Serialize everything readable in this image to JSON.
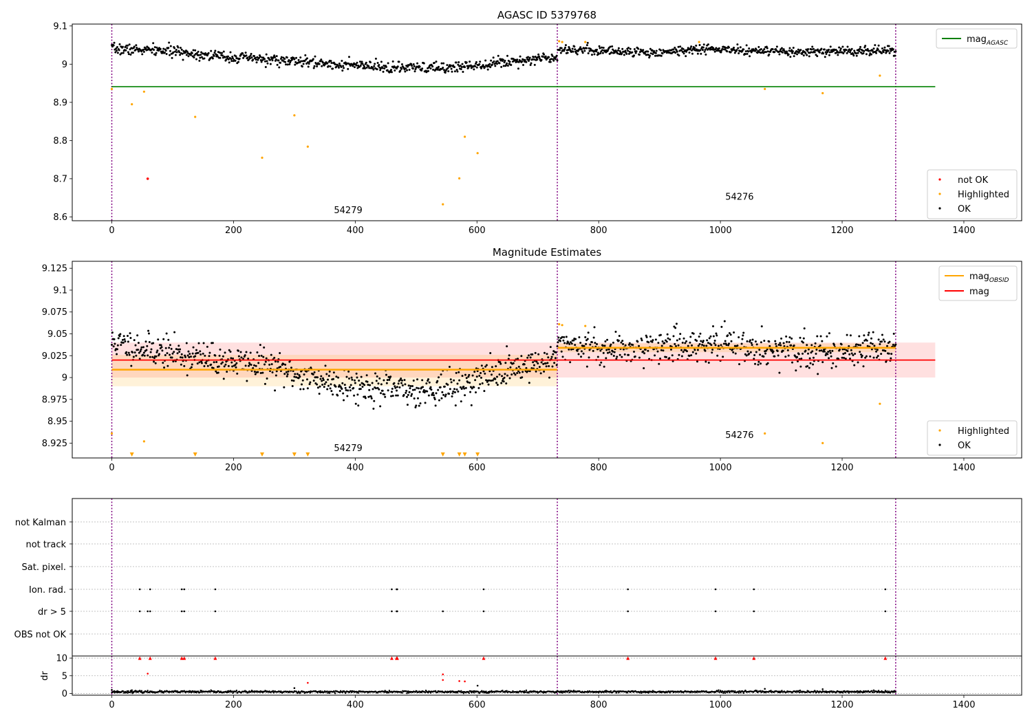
{
  "chart_data": [
    {
      "type": "scatter",
      "title": "AGASC ID 5379768",
      "xlim": [
        -65,
        1495
      ],
      "ylim": [
        8.59,
        9.105
      ],
      "x_ticks": [
        0,
        200,
        400,
        600,
        800,
        1000,
        1200,
        1400
      ],
      "y_ticks": [
        8.6,
        8.7,
        8.8,
        8.9,
        9.0,
        9.1
      ],
      "obsid_boundaries": [
        0,
        732,
        1288
      ],
      "obsid_labels": [
        {
          "text": "54279",
          "x": 365,
          "y": 8.61
        },
        {
          "text": "54276",
          "x": 1008,
          "y": 8.645
        }
      ],
      "hline": {
        "name": "mag",
        "subscript": "AGASC",
        "y": 8.941,
        "x0": 0,
        "x1": 1353,
        "color": "#008000"
      },
      "ok_trend": {
        "seed": 7,
        "segments": [
          {
            "x0": 0,
            "x1": 732,
            "y": [
              9.04,
              9.035,
              9.02,
              9.01,
              9.0,
              8.99,
              8.99,
              9.005,
              9.02
            ],
            "noise": 0.007
          },
          {
            "x0": 733,
            "x1": 1288,
            "y": [
              9.04,
              9.035,
              9.03,
              9.04,
              9.035,
              9.03,
              9.035,
              9.035
            ],
            "noise": 0.006
          }
        ],
        "step": 1
      },
      "highlighted": [
        [
          0,
          8.935
        ],
        [
          33,
          8.895
        ],
        [
          53,
          8.928
        ],
        [
          137,
          8.862
        ],
        [
          247,
          8.755
        ],
        [
          300,
          8.866
        ],
        [
          322,
          8.784
        ],
        [
          544,
          8.633
        ],
        [
          571,
          8.701
        ],
        [
          580,
          8.81
        ],
        [
          601,
          8.767
        ],
        [
          735,
          9.06
        ],
        [
          740,
          9.058
        ],
        [
          778,
          9.058
        ],
        [
          965,
          9.058
        ],
        [
          1073,
          8.935
        ],
        [
          1168,
          8.924
        ],
        [
          1262,
          8.97
        ]
      ],
      "not_ok": [
        [
          59,
          8.7
        ]
      ],
      "legends": {
        "lines": [
          {
            "name": "mag",
            "subscript": "AGASC",
            "color": "#008000"
          }
        ],
        "points": [
          {
            "name": "not OK",
            "color": "#ff0000"
          },
          {
            "name": "Highlighted",
            "color": "#ffa500"
          },
          {
            "name": "OK",
            "color": "#000000"
          }
        ]
      }
    },
    {
      "type": "scatter",
      "title": "Magnitude Estimates",
      "xlim": [
        -65,
        1495
      ],
      "ylim": [
        8.908,
        9.133
      ],
      "x_ticks": [
        0,
        200,
        400,
        600,
        800,
        1000,
        1200,
        1400
      ],
      "y_ticks": [
        8.925,
        8.95,
        8.975,
        9.0,
        9.025,
        9.05,
        9.075,
        9.1,
        9.125
      ],
      "obsid_boundaries": [
        0,
        732,
        1288
      ],
      "obsid_labels": [
        {
          "text": "54279",
          "x": 365,
          "y": 8.916
        },
        {
          "text": "54276",
          "x": 1008,
          "y": 8.931
        }
      ],
      "mag": {
        "name": "mag",
        "y": 9.02,
        "band": [
          9.0,
          9.04
        ],
        "x0": 0,
        "x1": 1353,
        "color": "#ff0000"
      },
      "mag_obsid": [
        {
          "x0": 0,
          "x1": 732,
          "y": 9.009,
          "band": [
            8.99,
            9.026
          ]
        },
        {
          "x0": 733,
          "x1": 1288,
          "y": 9.034,
          "band": [
            9.029,
            9.039
          ]
        }
      ],
      "ok_trend": {
        "seed": 11,
        "segments": [
          {
            "x0": 0,
            "x1": 732,
            "y": [
              9.04,
              9.03,
              9.02,
              9.015,
              9.0,
              8.99,
              8.985,
              8.99,
              9.01,
              9.02
            ],
            "noise": 0.009
          },
          {
            "x0": 733,
            "x1": 1288,
            "y": [
              9.04,
              9.032,
              9.035,
              9.038,
              9.035,
              9.028,
              9.032,
              9.035
            ],
            "noise": 0.009
          }
        ],
        "step": 1
      },
      "highlighted": [
        [
          0,
          8.936
        ],
        [
          53,
          8.927
        ],
        [
          735,
          9.061
        ],
        [
          740,
          9.06
        ],
        [
          778,
          9.059
        ],
        [
          1073,
          8.936
        ],
        [
          1168,
          8.925
        ],
        [
          1262,
          8.97
        ]
      ],
      "below_range_markers": [
        33,
        137,
        247,
        300,
        322,
        544,
        571,
        580,
        601
      ],
      "legends": {
        "lines": [
          {
            "name": "mag",
            "subscript": "OBSID",
            "color": "#ffa500"
          },
          {
            "name": "mag",
            "subscript": "",
            "color": "#ff0000"
          }
        ],
        "points": [
          {
            "name": "Highlighted",
            "color": "#ffa500"
          },
          {
            "name": "OK",
            "color": "#000000"
          }
        ]
      }
    },
    {
      "type": "scatter",
      "title": "",
      "xlim": [
        -65,
        1495
      ],
      "categories": [
        "not Kalman",
        "not track",
        "Sat. pixel.",
        "Ion. rad.",
        "dr > 5",
        "OBS not OK"
      ],
      "flags": {
        "Ion. rad.": [
          46,
          63,
          115,
          119,
          170,
          460,
          468,
          469,
          611,
          848,
          992,
          1055,
          1271
        ],
        "dr > 5": [
          46,
          59,
          63,
          115,
          119,
          170,
          460,
          468,
          469,
          544,
          611,
          848,
          992,
          1055,
          1271
        ]
      },
      "obsid_boundaries": [
        0,
        732,
        1288
      ]
    },
    {
      "type": "scatter",
      "ylabel": "dr",
      "xlim": [
        -65,
        1495
      ],
      "ylim": [
        -0.5,
        10.6
      ],
      "x_ticks": [
        0,
        200,
        400,
        600,
        800,
        1000,
        1200,
        1400
      ],
      "y_ticks": [
        0,
        5,
        10
      ],
      "obsid_boundaries": [
        0,
        732,
        1288
      ],
      "ok_baseline": {
        "seed": 23,
        "x0": 0,
        "x1": 1288,
        "mean": 0.45,
        "noise": 0.25
      },
      "outliers_black": [
        [
          0,
          1.0
        ],
        [
          33,
          0.9
        ],
        [
          300,
          1.5
        ],
        [
          601,
          2.2
        ],
        [
          1073,
          1.3
        ],
        [
          1168,
          1.2
        ]
      ],
      "outliers_red": [
        [
          59,
          5.6
        ],
        [
          322,
          3.0
        ],
        [
          544,
          5.4
        ],
        [
          544,
          3.8
        ],
        [
          571,
          3.5
        ],
        [
          580,
          3.4
        ],
        [
          46,
          10
        ],
        [
          63,
          10
        ],
        [
          115,
          10
        ],
        [
          119,
          10
        ],
        [
          170,
          10
        ],
        [
          460,
          10
        ],
        [
          468,
          10
        ],
        [
          469,
          10
        ],
        [
          611,
          10
        ],
        [
          848,
          10
        ],
        [
          992,
          10
        ],
        [
          1055,
          10
        ],
        [
          1271,
          10
        ]
      ]
    }
  ]
}
